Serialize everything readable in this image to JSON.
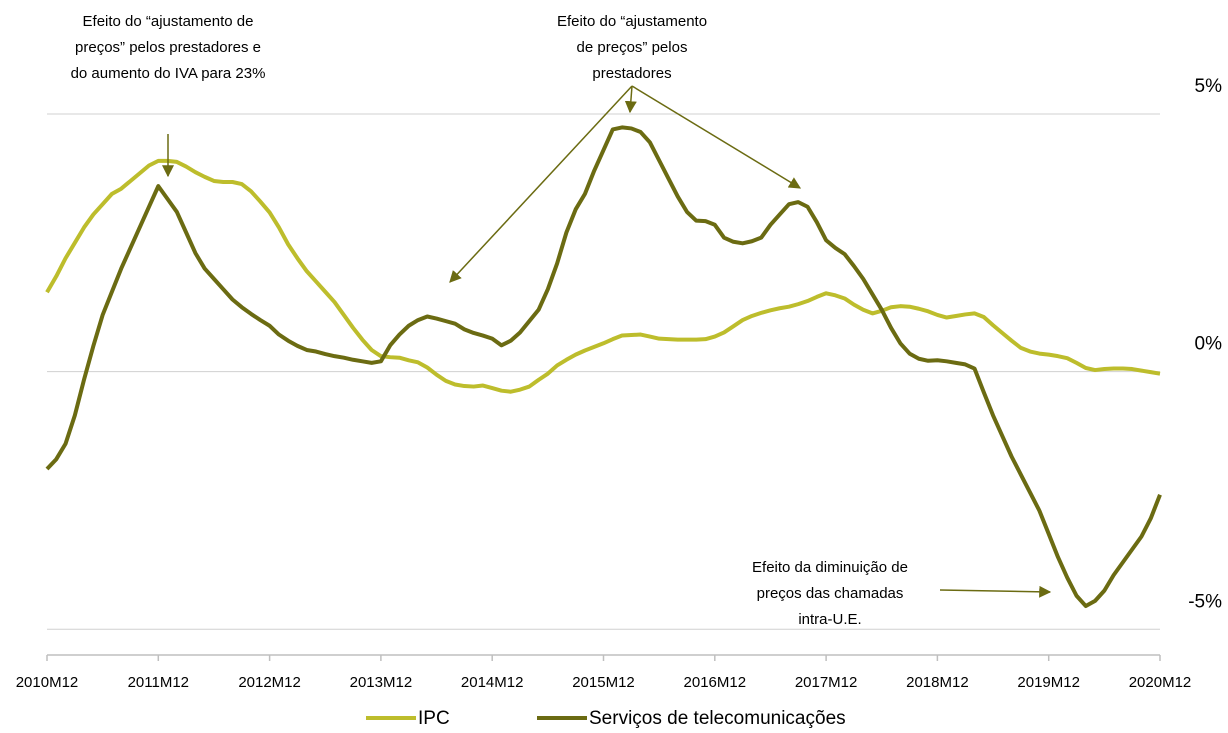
{
  "chart_data": {
    "type": "line",
    "categories": [
      "2010M12",
      null,
      null,
      null,
      null,
      null,
      null,
      null,
      null,
      null,
      null,
      null,
      "2011M12",
      null,
      null,
      null,
      null,
      null,
      null,
      null,
      null,
      null,
      null,
      null,
      "2012M12",
      null,
      null,
      null,
      null,
      null,
      null,
      null,
      null,
      null,
      null,
      null,
      "2013M12",
      null,
      null,
      null,
      null,
      null,
      null,
      null,
      null,
      null,
      null,
      null,
      "2014M12",
      null,
      null,
      null,
      null,
      null,
      null,
      null,
      null,
      null,
      null,
      null,
      "2015M12",
      null,
      null,
      null,
      null,
      null,
      null,
      null,
      null,
      null,
      null,
      null,
      "2016M12",
      null,
      null,
      null,
      null,
      null,
      null,
      null,
      null,
      null,
      null,
      null,
      "2017M12",
      null,
      null,
      null,
      null,
      null,
      null,
      null,
      null,
      null,
      null,
      null,
      "2018M12",
      null,
      null,
      null,
      null,
      null,
      null,
      null,
      null,
      null,
      null,
      null,
      "2019M12",
      null,
      null,
      null,
      null,
      null,
      null,
      null,
      null,
      null,
      null,
      null,
      "2020M12"
    ],
    "series": [
      {
        "name": "IPC",
        "color": "#bdbd2c",
        "values": [
          1.54,
          1.85,
          2.2,
          2.5,
          2.8,
          3.05,
          3.25,
          3.45,
          3.55,
          3.7,
          3.85,
          4.0,
          4.09,
          4.09,
          4.07,
          3.98,
          3.87,
          3.78,
          3.7,
          3.68,
          3.68,
          3.64,
          3.5,
          3.3,
          3.09,
          2.8,
          2.47,
          2.2,
          1.95,
          1.75,
          1.55,
          1.35,
          1.1,
          0.85,
          0.62,
          0.42,
          0.3,
          0.28,
          0.27,
          0.22,
          0.18,
          0.08,
          -0.06,
          -0.18,
          -0.25,
          -0.28,
          -0.29,
          -0.27,
          -0.32,
          -0.37,
          -0.39,
          -0.35,
          -0.29,
          -0.16,
          -0.04,
          0.12,
          0.23,
          0.33,
          0.41,
          0.48,
          0.55,
          0.63,
          0.7,
          0.71,
          0.72,
          0.68,
          0.64,
          0.63,
          0.62,
          0.62,
          0.62,
          0.63,
          0.68,
          0.76,
          0.88,
          1.0,
          1.08,
          1.14,
          1.19,
          1.23,
          1.26,
          1.31,
          1.37,
          1.45,
          1.52,
          1.48,
          1.42,
          1.3,
          1.2,
          1.13,
          1.18,
          1.25,
          1.27,
          1.26,
          1.22,
          1.17,
          1.1,
          1.05,
          1.08,
          1.11,
          1.13,
          1.06,
          0.9,
          0.75,
          0.6,
          0.46,
          0.39,
          0.35,
          0.33,
          0.3,
          0.26,
          0.17,
          0.07,
          0.03,
          0.05,
          0.06,
          0.06,
          0.05,
          0.02,
          -0.01,
          -0.04
        ]
      },
      {
        "name": "Serviços de telecomunicações",
        "color": "#6b6b12",
        "values": [
          -1.89,
          -1.7,
          -1.4,
          -0.85,
          -0.15,
          0.5,
          1.1,
          1.55,
          2.0,
          2.4,
          2.8,
          3.2,
          3.6,
          3.35,
          3.1,
          2.7,
          2.3,
          2.0,
          1.8,
          1.6,
          1.4,
          1.25,
          1.12,
          1.0,
          0.89,
          0.72,
          0.6,
          0.5,
          0.42,
          0.39,
          0.34,
          0.3,
          0.27,
          0.23,
          0.2,
          0.17,
          0.2,
          0.51,
          0.72,
          0.89,
          1.0,
          1.07,
          1.03,
          0.98,
          0.93,
          0.82,
          0.75,
          0.7,
          0.64,
          0.51,
          0.6,
          0.76,
          0.98,
          1.2,
          1.6,
          2.1,
          2.7,
          3.15,
          3.45,
          3.9,
          4.3,
          4.7,
          4.74,
          4.72,
          4.65,
          4.45,
          4.1,
          3.75,
          3.4,
          3.1,
          2.93,
          2.92,
          2.85,
          2.6,
          2.52,
          2.49,
          2.53,
          2.6,
          2.85,
          3.05,
          3.25,
          3.29,
          3.2,
          2.9,
          2.55,
          2.4,
          2.28,
          2.05,
          1.8,
          1.5,
          1.2,
          0.85,
          0.55,
          0.35,
          0.25,
          0.21,
          0.22,
          0.2,
          0.17,
          0.14,
          0.06,
          -0.4,
          -0.85,
          -1.25,
          -1.65,
          -2.0,
          -2.35,
          -2.7,
          -3.15,
          -3.6,
          -4.0,
          -4.35,
          -4.55,
          -4.45,
          -4.25,
          -3.95,
          -3.7,
          -3.45,
          -3.2,
          -2.85,
          -2.39
        ]
      }
    ],
    "ylim": [
      -5.5,
      5
    ],
    "yticks": [
      {
        "value": -5,
        "label": "-5%"
      },
      {
        "value": 0,
        "label": "0%"
      },
      {
        "value": 5,
        "label": "5%"
      }
    ],
    "grid": true,
    "legend": "bottom",
    "annotations": [
      [
        "Efeito do “ajustamento de",
        "preços” pelos prestadores e",
        "do aumento do IVA para 23%"
      ],
      [
        "Efeito do “ajustamento",
        "de preços” pelos",
        "prestadores"
      ],
      [
        "Efeito da diminuição de",
        "preços das chamadas",
        "intra-U.E."
      ]
    ]
  }
}
